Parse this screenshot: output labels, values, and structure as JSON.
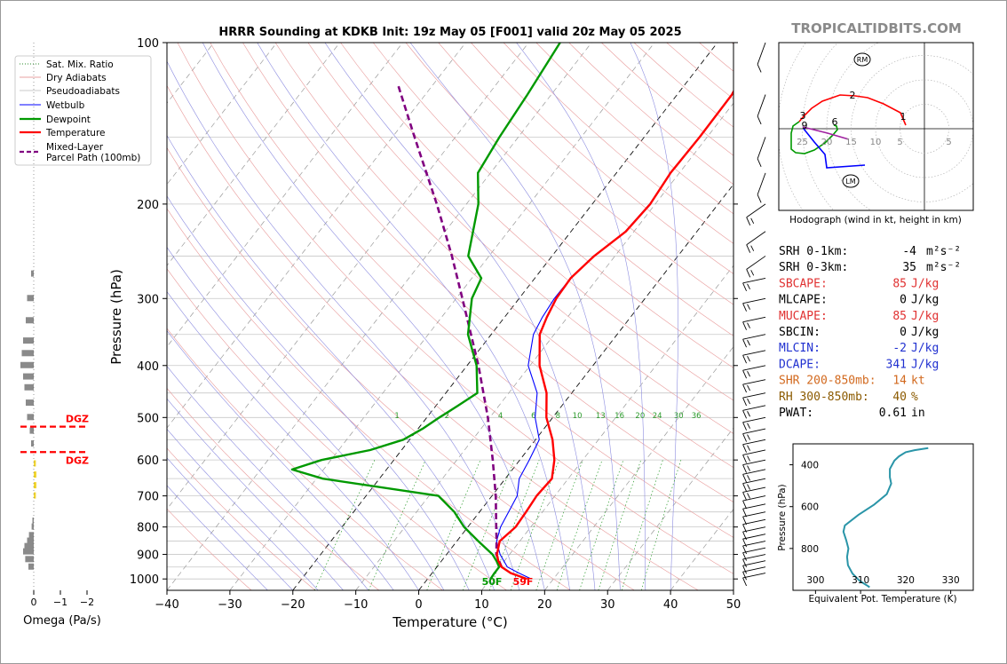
{
  "title": "HRRR Sounding at KDKB Init: 19z May 05 [F001] valid 20z May 05 2025",
  "brand": "TROPICALTIDBITS.COM",
  "colors": {
    "temperature": "#ff0000",
    "dewpoint": "#009900",
    "wetbulb": "#0000ff",
    "parcel": "#800080",
    "dgz": "#ff0000",
    "theta_e": "#2a95a8"
  },
  "chart_data": [
    {
      "type": "line",
      "name": "skewt",
      "xlabel": "Temperature (°C)",
      "ylabel": "Pressure (hPa)",
      "xlim": [
        -40,
        50
      ],
      "ylim": [
        1050,
        100
      ],
      "y_scale": "log",
      "x_ticks": [
        "−40",
        "−30",
        "−20",
        "−10",
        "0",
        "10",
        "20",
        "30",
        "40",
        "50"
      ],
      "y_ticks": [
        "100",
        "200",
        "300",
        "400",
        "500",
        "600",
        "700",
        "800",
        "900",
        "1000"
      ],
      "legend": [
        "Sat. Mix. Ratio",
        "Dry Adiabats",
        "Pseudoadiabats",
        "Wetbulb",
        "Dewpoint",
        "Temperature",
        "Mixed-Layer\nParcel Path (100mb)"
      ],
      "mixing_ratio_labels": [
        "1",
        "2",
        "4",
        "6",
        "8",
        "10",
        "13",
        "16",
        "20",
        "24",
        "30",
        "36"
      ],
      "surface_labels": {
        "dewpoint": "50F",
        "temperature": "59F"
      },
      "temperature": [
        [
          1000,
          15.8
        ],
        [
          975,
          12.5
        ],
        [
          950,
          10.3
        ],
        [
          925,
          9.0
        ],
        [
          900,
          8.0
        ],
        [
          850,
          6.8
        ],
        [
          800,
          7.6
        ],
        [
          750,
          7.4
        ],
        [
          700,
          7.1
        ],
        [
          650,
          7.4
        ],
        [
          600,
          5.5
        ],
        [
          550,
          2.7
        ],
        [
          500,
          -1.0
        ],
        [
          450,
          -4.0
        ],
        [
          400,
          -8.5
        ],
        [
          350,
          -12.3
        ],
        [
          325,
          -13.3
        ],
        [
          300,
          -14.1
        ],
        [
          275,
          -14.3
        ],
        [
          250,
          -13.3
        ],
        [
          225,
          -11.3
        ],
        [
          200,
          -10.8
        ],
        [
          175,
          -11.4
        ],
        [
          150,
          -11.2
        ],
        [
          125,
          -11.3
        ],
        [
          100,
          -13.2
        ]
      ],
      "dewpoint": [
        [
          1000,
          10.0
        ],
        [
          975,
          9.9
        ],
        [
          950,
          9.9
        ],
        [
          925,
          8.7
        ],
        [
          900,
          7.3
        ],
        [
          850,
          3.4
        ],
        [
          800,
          -0.6
        ],
        [
          750,
          -4.0
        ],
        [
          700,
          -8.5
        ],
        [
          650,
          -29.0
        ],
        [
          625,
          -35.0
        ],
        [
          600,
          -31.5
        ],
        [
          575,
          -25.0
        ],
        [
          550,
          -21.0
        ],
        [
          525,
          -19.3
        ],
        [
          500,
          -18.0
        ],
        [
          475,
          -16.5
        ],
        [
          450,
          -15.0
        ],
        [
          400,
          -18.5
        ],
        [
          350,
          -23.7
        ],
        [
          300,
          -27.5
        ],
        [
          275,
          -28.5
        ],
        [
          250,
          -33.3
        ],
        [
          200,
          -38.1
        ],
        [
          175,
          -42.0
        ],
        [
          150,
          -43.0
        ],
        [
          125,
          -43.8
        ],
        [
          100,
          -45.0
        ]
      ],
      "wetbulb": [
        [
          1000,
          16.5
        ],
        [
          975,
          13.8
        ],
        [
          950,
          11.2
        ],
        [
          900,
          8.5
        ],
        [
          850,
          6.3
        ],
        [
          800,
          5.2
        ],
        [
          700,
          4.0
        ],
        [
          650,
          2.2
        ],
        [
          600,
          1.5
        ],
        [
          550,
          0.6
        ],
        [
          500,
          -2.8
        ],
        [
          450,
          -5.5
        ],
        [
          400,
          -10.3
        ],
        [
          350,
          -13.3
        ],
        [
          325,
          -14.0
        ],
        [
          300,
          -14.4
        ],
        [
          275,
          -14.3
        ],
        [
          250,
          -13.2
        ],
        [
          225,
          -11.4
        ],
        [
          200,
          -10.9
        ],
        [
          175,
          -11.4
        ],
        [
          150,
          -11.2
        ],
        [
          125,
          -11.3
        ],
        [
          100,
          -13.2
        ]
      ],
      "parcel": [
        [
          950,
          10.3
        ],
        [
          900,
          7.9
        ],
        [
          850,
          6.3
        ],
        [
          800,
          4.5
        ],
        [
          700,
          0.6
        ],
        [
          600,
          -4.3
        ],
        [
          500,
          -10.3
        ],
        [
          400,
          -18.2
        ],
        [
          300,
          -29.0
        ],
        [
          250,
          -35.9
        ],
        [
          200,
          -44.7
        ],
        [
          150,
          -56.5
        ],
        [
          120,
          -65.5
        ]
      ]
    },
    {
      "type": "bar",
      "name": "omega",
      "xlabel": "Omega (Pa/s)",
      "x_ticks": [
        "0",
        "−1",
        "−2"
      ],
      "dgz_label": "DGZ",
      "dgz": [
        520,
        580
      ],
      "values": [
        [
          270,
          0.1
        ],
        [
          300,
          0.25
        ],
        [
          330,
          0.3
        ],
        [
          360,
          0.4
        ],
        [
          380,
          0.45
        ],
        [
          400,
          0.5
        ],
        [
          420,
          0.4
        ],
        [
          440,
          0.35
        ],
        [
          470,
          0.3
        ],
        [
          500,
          0.25
        ],
        [
          530,
          0.15
        ],
        [
          560,
          0.1
        ],
        [
          610,
          -0.08
        ],
        [
          640,
          -0.1
        ],
        [
          670,
          -0.1
        ],
        [
          700,
          -0.08
        ],
        [
          780,
          0.05
        ],
        [
          800,
          0.08
        ],
        [
          830,
          0.18
        ],
        [
          850,
          0.25
        ],
        [
          870,
          0.35
        ],
        [
          890,
          0.4
        ],
        [
          920,
          0.32
        ],
        [
          950,
          0.2
        ]
      ]
    },
    {
      "type": "line",
      "name": "hodograph",
      "caption": "Hodograph (wind in kt, height in km)",
      "ring_labels": [
        "25",
        "20",
        "15",
        "10",
        "5",
        "5"
      ],
      "height_labels": [
        "1",
        "2",
        "3",
        "6",
        "9"
      ],
      "storm_markers": [
        "RM",
        "LM"
      ]
    },
    {
      "type": "line",
      "name": "theta_e",
      "xlabel": "Equivalent Pot. Temperature (K)",
      "ylabel": "Pressure (hPa)",
      "xlim": [
        295,
        335
      ],
      "ylim": [
        1000,
        300
      ],
      "x_ticks": [
        "300",
        "310",
        "320",
        "330"
      ],
      "y_ticks": [
        "400",
        "600",
        "800"
      ],
      "values": [
        [
          312,
          985
        ],
        [
          311.3,
          975
        ],
        [
          309.8,
          955
        ],
        [
          308.2,
          920
        ],
        [
          307.2,
          880
        ],
        [
          307,
          840
        ],
        [
          307.3,
          800
        ],
        [
          306.8,
          760
        ],
        [
          306.2,
          720
        ],
        [
          306.5,
          690
        ],
        [
          309.5,
          640
        ],
        [
          313,
          590
        ],
        [
          315.8,
          540
        ],
        [
          316.8,
          490
        ],
        [
          316.5,
          460
        ],
        [
          316.5,
          420
        ],
        [
          317,
          400
        ],
        [
          317.5,
          380
        ],
        [
          318.5,
          360
        ],
        [
          320,
          340
        ],
        [
          322,
          330
        ],
        [
          325,
          320
        ]
      ]
    }
  ],
  "indices": [
    {
      "label": "SRH 0-1km:",
      "value": "-4",
      "unit": "m²s⁻²",
      "color": "#000000"
    },
    {
      "label": "SRH 0-3km:",
      "value": "35",
      "unit": "m²s⁻²",
      "color": "#000000"
    },
    {
      "label": "SBCAPE:",
      "value": "85",
      "unit": "J/kg",
      "color": "#e03131"
    },
    {
      "label": "MLCAPE:",
      "value": "0",
      "unit": "J/kg",
      "color": "#000000"
    },
    {
      "label": "MUCAPE:",
      "value": "85",
      "unit": "J/kg",
      "color": "#e03131"
    },
    {
      "label": "SBCIN:",
      "value": "0",
      "unit": "J/kg",
      "color": "#000000"
    },
    {
      "label": "MLCIN:",
      "value": "-2",
      "unit": "J/kg",
      "color": "#2030d0"
    },
    {
      "label": "DCAPE:",
      "value": "341",
      "unit": "J/kg",
      "color": "#2030d0"
    },
    {
      "label": "SHR 200-850mb:",
      "value": "14",
      "unit": "kt",
      "color": "#d2691e"
    },
    {
      "label": "RH 300-850mb:",
      "value": "40",
      "unit": "%",
      "color": "#8b5a00"
    },
    {
      "label": "PWAT:",
      "value": "0.61",
      "unit": "in",
      "color": "#000000"
    }
  ]
}
